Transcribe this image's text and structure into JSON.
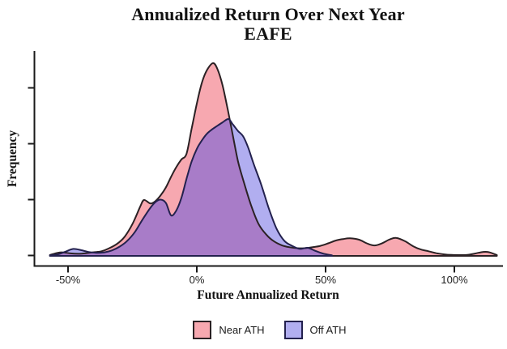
{
  "title": {
    "line1": "Annualized Return Over Next Year",
    "line2": "EAFE"
  },
  "axes": {
    "x_label": "Future Annualized Return",
    "y_label": "Frequency",
    "x_ticks": [
      {
        "pct": -50,
        "label": "-50%"
      },
      {
        "pct": 0,
        "label": "0%"
      },
      {
        "pct": 50,
        "label": "50%"
      },
      {
        "pct": 100,
        "label": "100%"
      }
    ],
    "y_ticks_labeled": false,
    "y_ticks_density": [
      0,
      0.29,
      0.58,
      0.87
    ],
    "axis_color": "#1a1a1a"
  },
  "legend": {
    "items": [
      {
        "label": "Near ATH"
      },
      {
        "label": "Off ATH"
      }
    ]
  },
  "chart_data": {
    "type": "area",
    "subtype": "kernel-density",
    "title": "Annualized Return Over Next Year EAFE",
    "xlabel": "Future Annualized Return",
    "ylabel": "Frequency",
    "x_unit": "percent",
    "xlim": [
      -63,
      119
    ],
    "ylim": [
      0,
      1.06
    ],
    "grid": false,
    "legend_position": "bottom",
    "overlap_fill": "#A87CC8",
    "series": [
      {
        "name": "Near ATH",
        "fill": "#F7A8B0",
        "stroke": "#2B2124",
        "x": [
          -57,
          -54,
          -52,
          -49,
          -46,
          -43,
          -40,
          -37,
          -34,
          -31,
          -28,
          -25,
          -22,
          -20.5,
          -18,
          -16,
          -14,
          -12,
          -10,
          -8,
          -6,
          -4,
          -2,
          0,
          2,
          4,
          6.3,
          8,
          10,
          12,
          14,
          16,
          18,
          21,
          24,
          27,
          30,
          33,
          36,
          39,
          42,
          45,
          48,
          51,
          54,
          57,
          59.5,
          63,
          66,
          69,
          72,
          75,
          77.5,
          81,
          84,
          87,
          90,
          93,
          96,
          99,
          102,
          105,
          108,
          111,
          113.5,
          116.5
        ],
        "y": [
          0.005,
          0.016,
          0.018,
          0.013,
          0.011,
          0.014,
          0.019,
          0.024,
          0.04,
          0.062,
          0.1,
          0.165,
          0.255,
          0.29,
          0.272,
          0.285,
          0.315,
          0.355,
          0.41,
          0.46,
          0.5,
          0.53,
          0.66,
          0.79,
          0.9,
          0.965,
          1.0,
          0.97,
          0.885,
          0.76,
          0.625,
          0.49,
          0.395,
          0.265,
          0.165,
          0.11,
          0.075,
          0.055,
          0.045,
          0.04,
          0.04,
          0.045,
          0.052,
          0.065,
          0.08,
          0.088,
          0.091,
          0.084,
          0.065,
          0.054,
          0.066,
          0.086,
          0.093,
          0.075,
          0.05,
          0.033,
          0.024,
          0.014,
          0.008,
          0.005,
          0.004,
          0.005,
          0.012,
          0.02,
          0.019,
          0.004
        ]
      },
      {
        "name": "Off ATH",
        "fill": "#B1AEF0",
        "stroke": "#23214E",
        "x": [
          -57,
          -54,
          -51,
          -48,
          -45,
          -42,
          -39,
          -36,
          -33,
          -30,
          -27,
          -24,
          -21,
          -18,
          -16,
          -14,
          -12,
          -10,
          -8,
          -6,
          -4,
          -2,
          0,
          2,
          4,
          6,
          8,
          10,
          12.3,
          14,
          16,
          18,
          20,
          22,
          25,
          28,
          31,
          34,
          37,
          40,
          43,
          46,
          49,
          52.5
        ],
        "y": [
          0.003,
          0.008,
          0.022,
          0.036,
          0.03,
          0.02,
          0.016,
          0.018,
          0.028,
          0.048,
          0.078,
          0.125,
          0.19,
          0.25,
          0.28,
          0.292,
          0.275,
          0.21,
          0.235,
          0.3,
          0.4,
          0.49,
          0.555,
          0.6,
          0.635,
          0.657,
          0.675,
          0.693,
          0.71,
          0.682,
          0.648,
          0.62,
          0.56,
          0.48,
          0.37,
          0.245,
          0.14,
          0.078,
          0.052,
          0.036,
          0.042,
          0.026,
          0.012,
          0.003
        ]
      }
    ]
  }
}
